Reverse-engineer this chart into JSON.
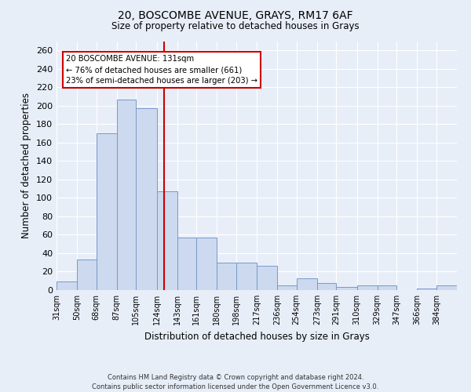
{
  "title1": "20, BOSCOMBE AVENUE, GRAYS, RM17 6AF",
  "title2": "Size of property relative to detached houses in Grays",
  "xlabel": "Distribution of detached houses by size in Grays",
  "ylabel": "Number of detached properties",
  "bar_color": "#ccd9ee",
  "bar_edge_color": "#7799cc",
  "background_color": "#e8eef8",
  "grid_color": "#ffffff",
  "vline_color": "#cc0000",
  "vline_x": 131,
  "annotation_text": "20 BOSCOMBE AVENUE: 131sqm\n← 76% of detached houses are smaller (661)\n23% of semi-detached houses are larger (203) →",
  "annotation_box_color": "#ffffff",
  "annotation_box_edge": "#cc0000",
  "footer": "Contains HM Land Registry data © Crown copyright and database right 2024.\nContains public sector information licensed under the Open Government Licence v3.0.",
  "bins": [
    31,
    50,
    68,
    87,
    105,
    124,
    143,
    161,
    180,
    198,
    217,
    236,
    254,
    273,
    291,
    310,
    329,
    347,
    366,
    384,
    403
  ],
  "counts": [
    9,
    33,
    170,
    207,
    197,
    107,
    57,
    57,
    30,
    30,
    26,
    5,
    13,
    8,
    3,
    5,
    5,
    0,
    2,
    5
  ],
  "ylim": [
    0,
    270
  ],
  "yticks": [
    0,
    20,
    40,
    60,
    80,
    100,
    120,
    140,
    160,
    180,
    200,
    220,
    240,
    260
  ]
}
